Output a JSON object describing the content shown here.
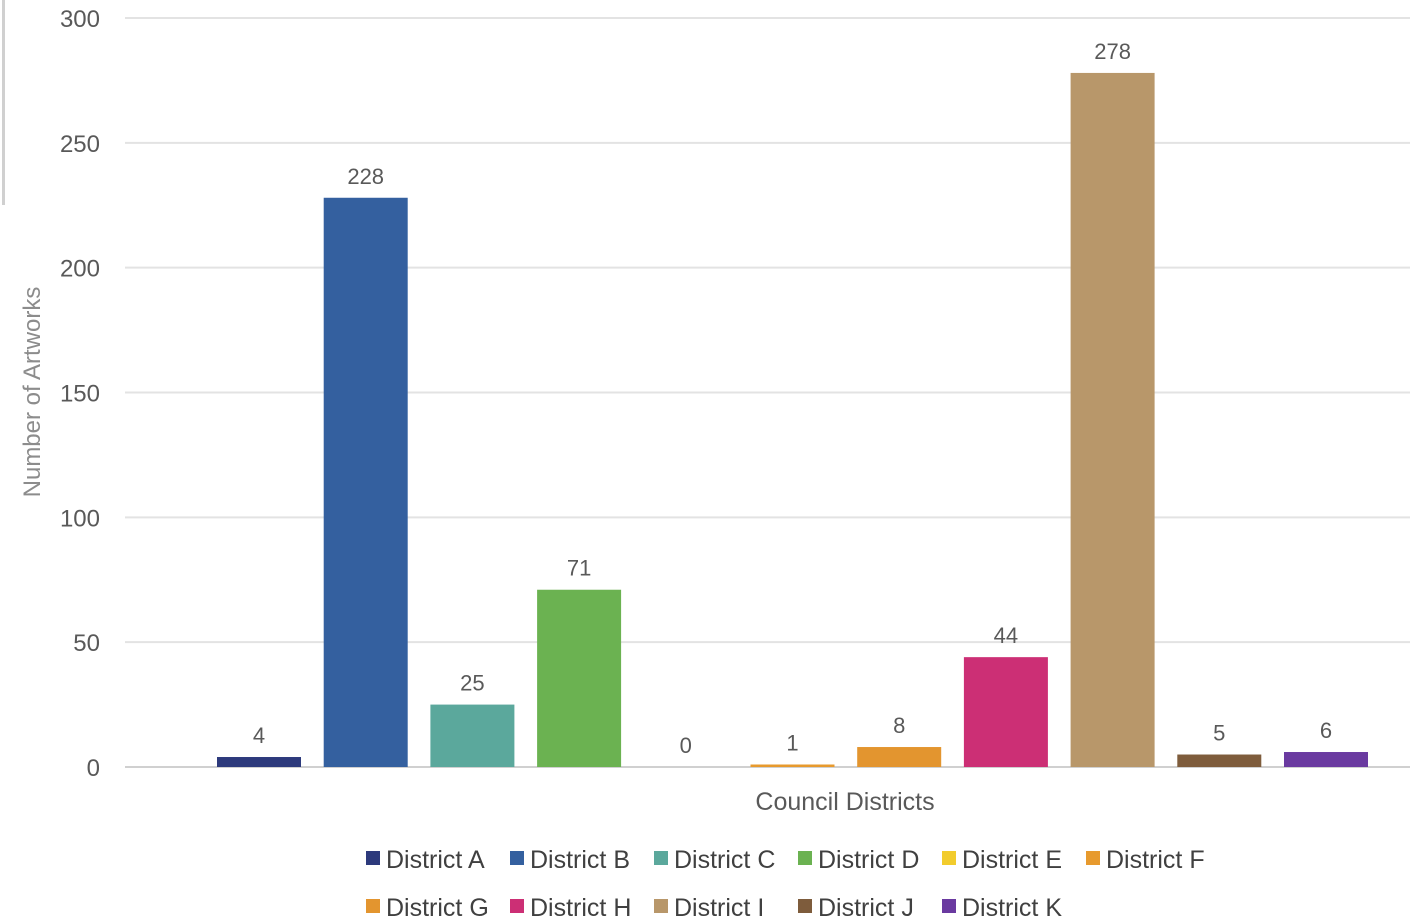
{
  "chart_data": {
    "type": "bar",
    "title": "",
    "xlabel": "Council Districts",
    "ylabel": "Number of Artworks",
    "ylim": [
      0,
      300
    ],
    "yticks": [
      0,
      50,
      100,
      150,
      200,
      250,
      300
    ],
    "grid": true,
    "legend_position": "bottom",
    "series": [
      {
        "name": "District A",
        "value": 4,
        "color": "#2d3a7c"
      },
      {
        "name": "District B",
        "value": 228,
        "color": "#34609f"
      },
      {
        "name": "District C",
        "value": 25,
        "color": "#5ba89c"
      },
      {
        "name": "District D",
        "value": 71,
        "color": "#6bb251"
      },
      {
        "name": "District E",
        "value": 0,
        "color": "#f2cc2d"
      },
      {
        "name": "District F",
        "value": 1,
        "color": "#e79a2e"
      },
      {
        "name": "District G",
        "value": 8,
        "color": "#e3952f"
      },
      {
        "name": "District H",
        "value": 44,
        "color": "#cc2f75"
      },
      {
        "name": "District I",
        "value": 278,
        "color": "#b8976a"
      },
      {
        "name": "District J",
        "value": 5,
        "color": "#7e5c3c"
      },
      {
        "name": "District K",
        "value": 6,
        "color": "#6a3aa0"
      }
    ]
  }
}
